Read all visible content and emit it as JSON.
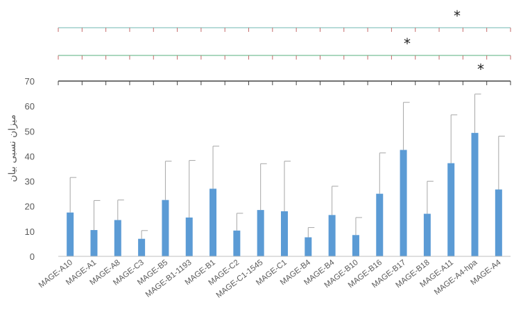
{
  "chart_data": {
    "type": "bar",
    "title": "",
    "xlabel": "",
    "ylabel": "میزان نسبی بیان",
    "ylim": [
      0,
      70
    ],
    "yticks": [
      0,
      10,
      20,
      30,
      40,
      50,
      60,
      70
    ],
    "grid": false,
    "bar_color": "#5b9bd5",
    "error_bar_color": "#a6a6a6",
    "categories": [
      "MAGE-A10",
      "MAGE-A1",
      "MAGE-A8",
      "MAGE-C3",
      "MAGE-B5",
      "MAGE-B1-1193",
      "MAGE-B1",
      "MAGE-C2",
      "MAGE-C1-1545",
      "MAGE-C1",
      "MAGE-B4",
      "MAGE-B4",
      "MAGE-B10",
      "MAGE-B16",
      "MAGE-B17",
      "MAGE-B18",
      "MAGE-A11",
      "MAGE-A4-hpa",
      "MAGE-A4"
    ],
    "values": [
      17.5,
      10.5,
      14.5,
      7.0,
      22.5,
      15.5,
      27.0,
      10.3,
      18.5,
      18.0,
      7.6,
      16.5,
      8.5,
      25.0,
      42.5,
      17.0,
      37.2,
      49.3,
      26.7
    ],
    "error_upper": [
      31.5,
      22.3,
      22.5,
      10.3,
      38.0,
      38.3,
      44.0,
      17.2,
      37.0,
      38.0,
      11.5,
      28.0,
      15.5,
      41.3,
      61.5,
      30.0,
      56.5,
      64.8,
      48.0
    ],
    "significance_brackets": [
      {
        "label": "*",
        "color": "#9fcfcc"
      },
      {
        "label": "*",
        "color": "#8fcaa8"
      },
      {
        "label": "*",
        "color": "#444444"
      }
    ]
  }
}
